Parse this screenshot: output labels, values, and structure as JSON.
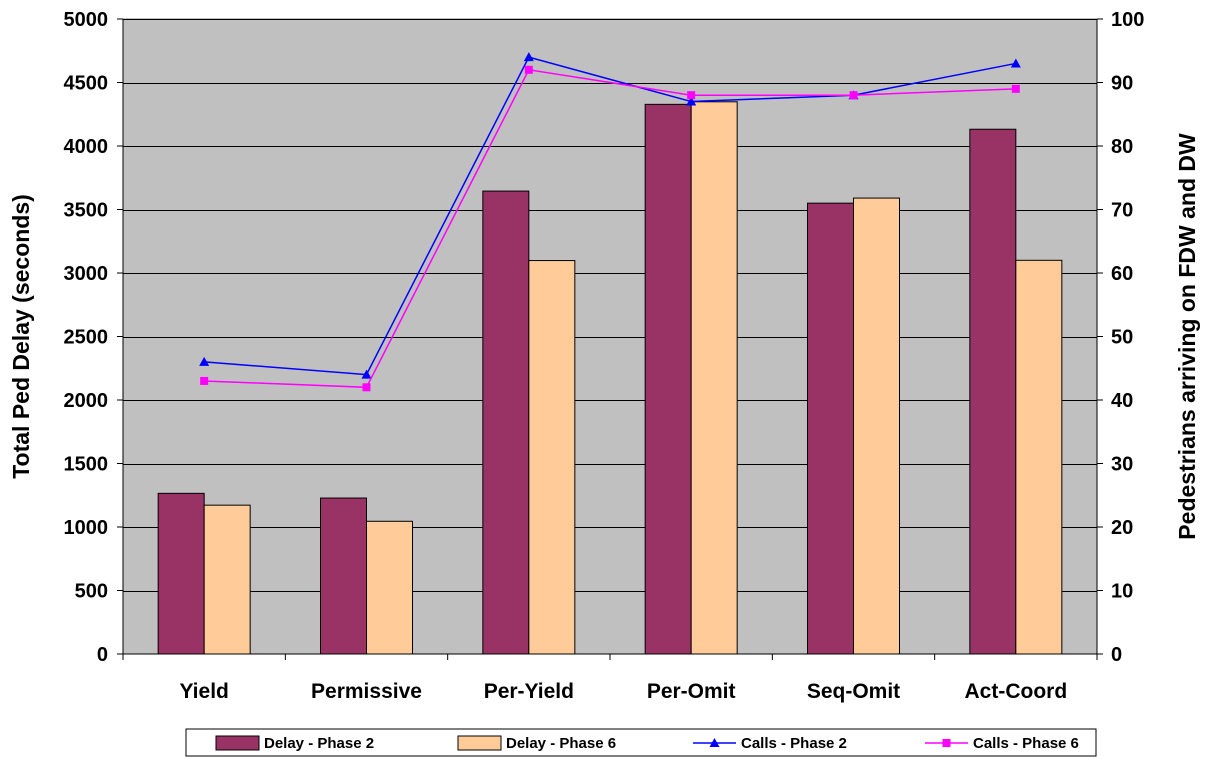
{
  "chart_data": {
    "type": "bar",
    "categories": [
      "Yield",
      "Permissive",
      "Per-Yield",
      "Per-Omit",
      "Seq-Omit",
      "Act-Coord"
    ],
    "bar_series": [
      {
        "name": "Delay - Phase 2",
        "values": [
          1265,
          1228,
          3645,
          4328,
          3550,
          4132
        ],
        "color": "#993366",
        "axis": "left"
      },
      {
        "name": "Delay - Phase 6",
        "values": [
          1172,
          1045,
          3098,
          4348,
          3590,
          3100
        ],
        "color": "#FFCC99",
        "axis": "left"
      }
    ],
    "line_series": [
      {
        "name": "Calls - Phase 2",
        "values": [
          46,
          44,
          94,
          87,
          88,
          93
        ],
        "color": "#0000FF",
        "marker": "triangle",
        "axis": "right"
      },
      {
        "name": "Calls - Phase 6",
        "values": [
          43,
          42,
          92,
          88,
          88,
          89
        ],
        "color": "#FF00FF",
        "marker": "square",
        "axis": "right"
      }
    ],
    "ylabel": "Total Ped Delay (seconds)",
    "y2label": "Pedestrians arriving on FDW and DW",
    "ylim": [
      0,
      5000
    ],
    "y2lim": [
      0,
      100
    ],
    "yticks": [
      0,
      500,
      1000,
      1500,
      2000,
      2500,
      3000,
      3500,
      4000,
      4500,
      5000
    ],
    "y2ticks": [
      0,
      10,
      20,
      30,
      40,
      50,
      60,
      70,
      80,
      90,
      100
    ],
    "plot_background": "#C0C0C0",
    "grid": true,
    "legend_position": "bottom"
  }
}
